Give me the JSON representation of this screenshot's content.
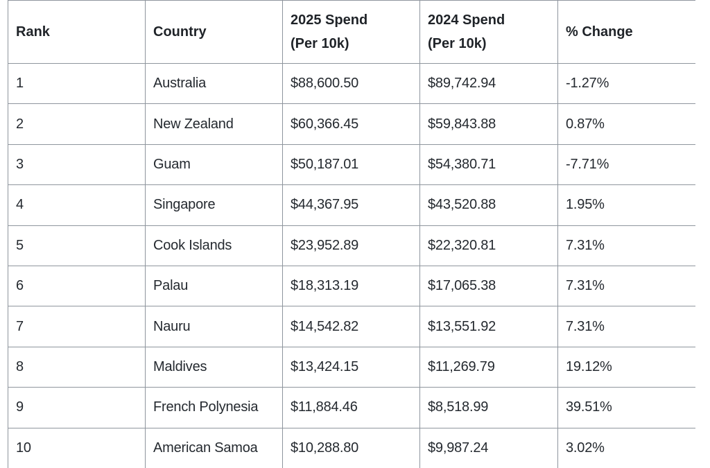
{
  "table": {
    "headers": {
      "rank": "Rank",
      "country": "Country",
      "spend_2025_line1": "2025 Spend",
      "spend_2025_line2": "(Per 10k)",
      "spend_2024_line1": "2024 Spend",
      "spend_2024_line2": "(Per 10k)",
      "change": "% Change"
    },
    "rows": [
      {
        "rank": "1",
        "country": "Australia",
        "spend_2025": "$88,600.50",
        "spend_2024": "$89,742.94",
        "change": "-1.27%"
      },
      {
        "rank": "2",
        "country": "New Zealand",
        "spend_2025": "$60,366.45",
        "spend_2024": "$59,843.88",
        "change": "0.87%"
      },
      {
        "rank": "3",
        "country": "Guam",
        "spend_2025": "$50,187.01",
        "spend_2024": "$54,380.71",
        "change": "-7.71%"
      },
      {
        "rank": "4",
        "country": "Singapore",
        "spend_2025": "$44,367.95",
        "spend_2024": "$43,520.88",
        "change": "1.95%"
      },
      {
        "rank": "5",
        "country": "Cook Islands",
        "spend_2025": "$23,952.89",
        "spend_2024": "$22,320.81",
        "change": "7.31%"
      },
      {
        "rank": "6",
        "country": "Palau",
        "spend_2025": "$18,313.19",
        "spend_2024": "$17,065.38",
        "change": "7.31%"
      },
      {
        "rank": "7",
        "country": "Nauru",
        "spend_2025": "$14,542.82",
        "spend_2024": "$13,551.92",
        "change": "7.31%"
      },
      {
        "rank": "8",
        "country": "Maldives",
        "spend_2025": "$13,424.15",
        "spend_2024": "$11,269.79",
        "change": "19.12%"
      },
      {
        "rank": "9",
        "country": "French Polynesia",
        "spend_2025": "$11,884.46",
        "spend_2024": "$8,518.99",
        "change": "39.51%"
      },
      {
        "rank": "10",
        "country": "American Samoa",
        "spend_2025": "$10,288.80",
        "spend_2024": "$9,987.24",
        "change": "3.02%"
      }
    ]
  }
}
